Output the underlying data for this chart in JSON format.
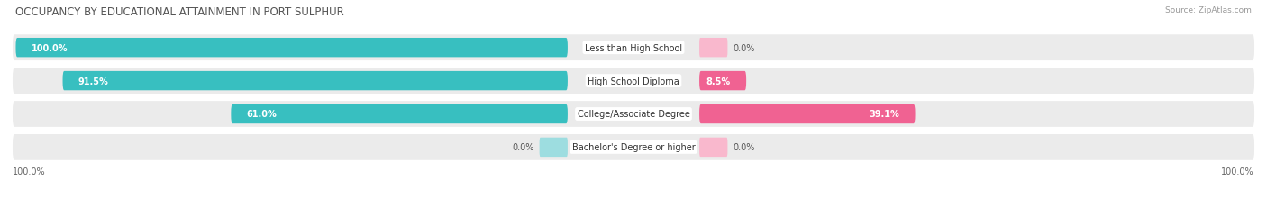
{
  "title": "OCCUPANCY BY EDUCATIONAL ATTAINMENT IN PORT SULPHUR",
  "source": "Source: ZipAtlas.com",
  "categories": [
    "Less than High School",
    "High School Diploma",
    "College/Associate Degree",
    "Bachelor's Degree or higher"
  ],
  "owner_values": [
    100.0,
    91.5,
    61.0,
    0.0
  ],
  "renter_values": [
    0.0,
    8.5,
    39.1,
    0.0
  ],
  "owner_color": "#38bfc0",
  "renter_color": "#f06292",
  "owner_color_light": "#9ddde0",
  "renter_color_light": "#f9b8cd",
  "row_bg_color": "#ebebeb",
  "max_value": 100.0,
  "left_axis_label": "100.0%",
  "right_axis_label": "100.0%",
  "title_fontsize": 8.5,
  "label_fontsize": 7.0,
  "value_fontsize": 7.0,
  "axis_fontsize": 7.0,
  "source_fontsize": 6.5
}
